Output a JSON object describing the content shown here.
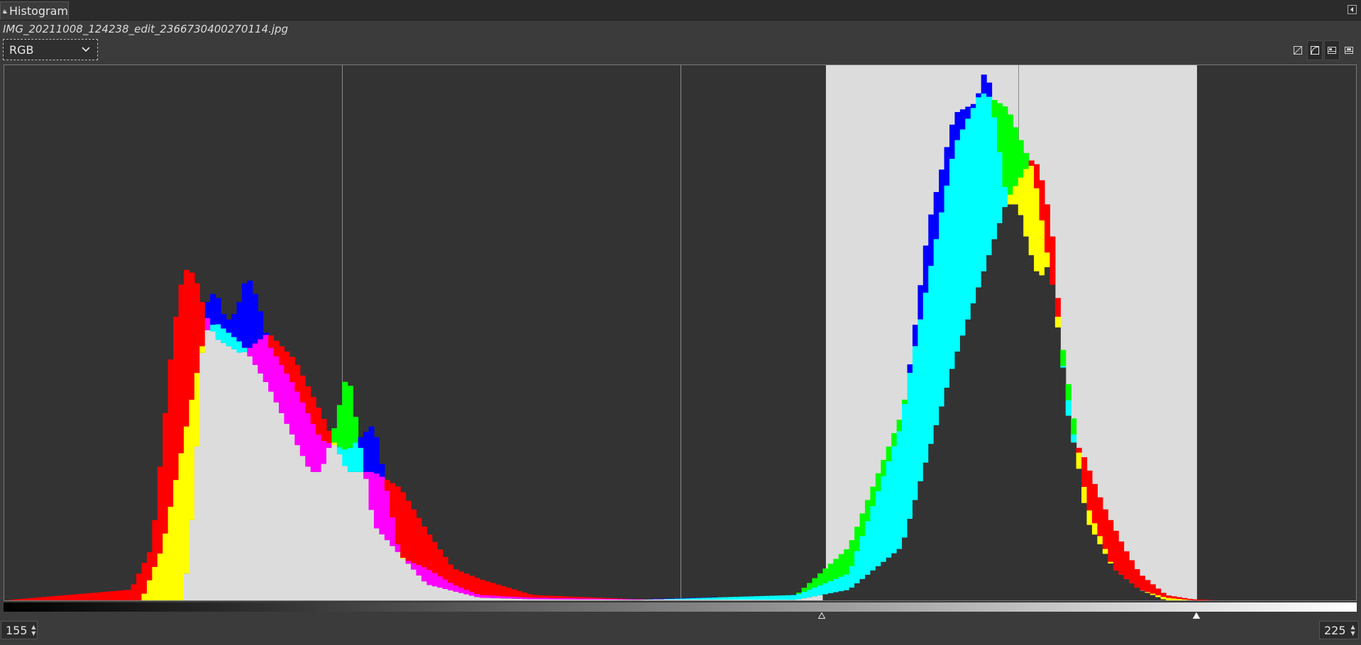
{
  "tab": {
    "label": "Histogram",
    "icon": "histogram-icon"
  },
  "panel": {
    "menu_icon": "panel-menu-icon"
  },
  "image": {
    "filename": "IMG_20211008_124238_edit_2366730400270114.jpg"
  },
  "channel": {
    "selected": "RGB"
  },
  "scale_buttons": [
    {
      "icon": "linear-histogram-icon",
      "active": false
    },
    {
      "icon": "logarithmic-histogram-icon",
      "active": true
    },
    {
      "icon": "view-merged-icon",
      "active": false
    },
    {
      "icon": "view-separate-icon",
      "active": false
    }
  ],
  "range": {
    "start": "155",
    "end": "225"
  },
  "colors": {
    "red": "#ff0000",
    "green": "#00ff00",
    "blue": "#0000ff",
    "yellow": "#ffff00",
    "cyan": "#00ffff",
    "magenta": "#ff00ff",
    "gray": "#dcdcdc",
    "background": "#333333",
    "selection": "#dcdcdc"
  },
  "chart_data": {
    "type": "area",
    "x_range": [
      0,
      255
    ],
    "selection_range": [
      155,
      225
    ],
    "grid": "vertical lines at quarters",
    "series": [
      {
        "name": "red",
        "x": [
          0,
          24,
          28,
          30,
          32,
          34,
          36,
          38,
          40,
          45,
          50,
          55,
          60,
          65,
          70,
          75,
          80,
          85,
          90,
          100,
          120,
          150,
          160,
          170,
          180,
          190,
          195,
          197,
          199,
          200,
          202,
          204,
          206,
          208,
          210,
          212,
          215,
          220,
          225,
          230
        ],
        "values": [
          0,
          0.02,
          0.1,
          0.3,
          0.5,
          0.62,
          0.61,
          0.54,
          0.49,
          0.46,
          0.5,
          0.45,
          0.35,
          0.24,
          0.24,
          0.21,
          0.13,
          0.06,
          0.04,
          0.01,
          0.002,
          0.001,
          0.02,
          0.1,
          0.45,
          0.75,
          0.83,
          0.77,
          0.65,
          0.48,
          0.3,
          0.28,
          0.23,
          0.18,
          0.14,
          0.1,
          0.05,
          0.01,
          0.002,
          0
        ]
      },
      {
        "name": "green",
        "x": [
          0,
          26,
          30,
          34,
          38,
          40,
          45,
          50,
          55,
          58,
          60,
          62,
          65,
          70,
          80,
          90,
          100,
          120,
          150,
          160,
          170,
          175,
          180,
          185,
          190,
          195,
          200,
          205,
          210,
          215,
          220,
          225
        ],
        "values": [
          0,
          0,
          0.1,
          0.3,
          0.5,
          0.52,
          0.48,
          0.4,
          0.3,
          0.24,
          0.24,
          0.3,
          0.43,
          0.14,
          0.03,
          0.005,
          0.002,
          0.001,
          0.01,
          0.1,
          0.35,
          0.6,
          0.85,
          0.95,
          0.92,
          0.8,
          0.5,
          0.18,
          0.06,
          0.02,
          0.005,
          0
        ]
      },
      {
        "name": "blue",
        "x": [
          0,
          34,
          36,
          38,
          40,
          42,
          44,
          46,
          48,
          50,
          55,
          60,
          65,
          70,
          75,
          80,
          85,
          90,
          100,
          120,
          150,
          160,
          170,
          175,
          180,
          184,
          186,
          188,
          190,
          192,
          194,
          196,
          198,
          200,
          205,
          210,
          215,
          220
        ],
        "values": [
          0,
          0,
          0.2,
          0.55,
          0.58,
          0.52,
          0.54,
          0.61,
          0.56,
          0.48,
          0.4,
          0.3,
          0.28,
          0.33,
          0.08,
          0.06,
          0.03,
          0.01,
          0.005,
          0.002,
          0.01,
          0.05,
          0.33,
          0.7,
          0.91,
          0.93,
          1.0,
          0.87,
          0.74,
          0.74,
          0.66,
          0.6,
          0.63,
          0.47,
          0.15,
          0.06,
          0.02,
          0
        ]
      }
    ]
  }
}
